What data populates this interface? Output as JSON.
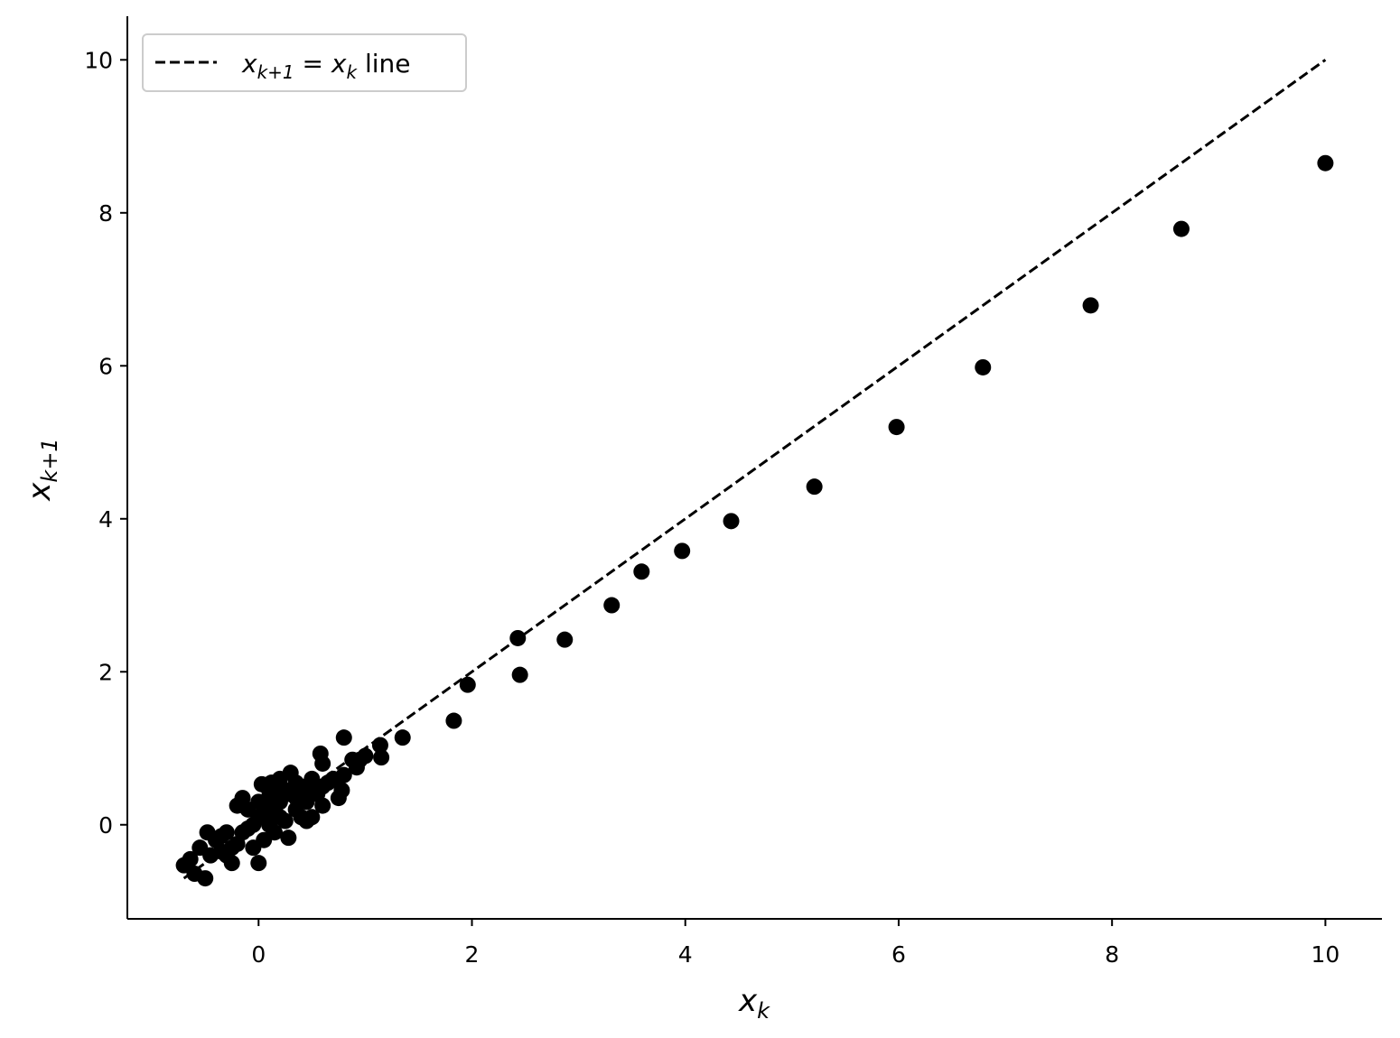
{
  "chart_data": {
    "type": "scatter",
    "title": "",
    "xlabel": {
      "base": "x",
      "sub": "k"
    },
    "ylabel": {
      "base": "x",
      "sub": "k+1"
    },
    "xlim": [
      -1.23,
      10.53
    ],
    "ylim": [
      -1.23,
      10.57
    ],
    "xticks": [
      0,
      2,
      4,
      6,
      8,
      10
    ],
    "yticks": [
      0,
      2,
      4,
      6,
      8,
      10
    ],
    "grid": false,
    "legend": {
      "placement": "top-left",
      "entries": [
        {
          "label_parts": [
            "x",
            "k+1",
            " = ",
            "x",
            "k",
            " line"
          ],
          "style": "dashed",
          "color": "#000000"
        }
      ]
    },
    "reference_line": {
      "name": "x_{k+1} = x_k line",
      "x": [
        -0.7,
        10
      ],
      "y": [
        -0.7,
        10
      ],
      "style": "dashed",
      "color": "#000000"
    },
    "marker_color": "#000000",
    "points": [
      [
        10,
        8.65
      ],
      [
        8.65,
        7.79
      ],
      [
        7.8,
        6.79
      ],
      [
        6.79,
        5.98
      ],
      [
        5.98,
        5.2
      ],
      [
        5.21,
        4.42
      ],
      [
        4.43,
        3.97
      ],
      [
        3.97,
        3.58
      ],
      [
        3.59,
        3.31
      ],
      [
        3.31,
        2.87
      ],
      [
        2.87,
        2.42
      ],
      [
        2.43,
        2.44
      ],
      [
        2.45,
        1.96
      ],
      [
        1.96,
        1.83
      ],
      [
        1.83,
        1.36
      ],
      [
        1.35,
        1.14
      ],
      [
        1.15,
        0.88
      ],
      [
        1.14,
        1.04
      ],
      [
        0.8,
        1.14
      ],
      [
        1.0,
        0.9
      ],
      [
        0.95,
        0.85
      ],
      [
        0.92,
        0.75
      ],
      [
        0.88,
        0.85
      ],
      [
        0.8,
        0.65
      ],
      [
        0.78,
        0.45
      ],
      [
        0.75,
        0.35
      ],
      [
        0.7,
        0.6
      ],
      [
        0.65,
        0.55
      ],
      [
        0.6,
        0.8
      ],
      [
        0.6,
        0.25
      ],
      [
        0.6,
        0.5
      ],
      [
        0.58,
        0.93
      ],
      [
        0.55,
        0.4
      ],
      [
        0.5,
        0.6
      ],
      [
        0.5,
        0.1
      ],
      [
        0.48,
        0.45
      ],
      [
        0.45,
        0.3
      ],
      [
        0.45,
        0.05
      ],
      [
        0.4,
        0.5
      ],
      [
        0.4,
        0.1
      ],
      [
        0.38,
        0.35
      ],
      [
        0.35,
        0.2
      ],
      [
        0.35,
        0.55
      ],
      [
        0.3,
        0.4
      ],
      [
        0.3,
        0.68
      ],
      [
        0.28,
        -0.17
      ],
      [
        0.25,
        0.05
      ],
      [
        0.25,
        0.45
      ],
      [
        0.2,
        0.6
      ],
      [
        0.2,
        0.3
      ],
      [
        0.2,
        0.1
      ],
      [
        0.18,
        0.38
      ],
      [
        0.15,
        0.2
      ],
      [
        0.15,
        -0.1
      ],
      [
        0.12,
        0.55
      ],
      [
        0.1,
        0.0
      ],
      [
        0.1,
        0.45
      ],
      [
        0.08,
        0.15
      ],
      [
        0.05,
        -0.2
      ],
      [
        0.05,
        0.3
      ],
      [
        0.03,
        0.53
      ],
      [
        0.0,
        0.1
      ],
      [
        0.0,
        0.3
      ],
      [
        0.0,
        -0.5
      ],
      [
        -0.05,
        -0.3
      ],
      [
        -0.05,
        0.0
      ],
      [
        -0.1,
        -0.05
      ],
      [
        -0.1,
        0.2
      ],
      [
        -0.15,
        0.35
      ],
      [
        -0.15,
        -0.1
      ],
      [
        -0.2,
        0.25
      ],
      [
        -0.2,
        -0.25
      ],
      [
        -0.25,
        -0.5
      ],
      [
        -0.25,
        -0.3
      ],
      [
        -0.3,
        -0.1
      ],
      [
        -0.3,
        -0.4
      ],
      [
        -0.35,
        -0.35
      ],
      [
        -0.35,
        -0.15
      ],
      [
        -0.4,
        -0.2
      ],
      [
        -0.45,
        -0.4
      ],
      [
        -0.48,
        -0.1
      ],
      [
        -0.5,
        -0.7
      ],
      [
        -0.55,
        -0.3
      ],
      [
        -0.6,
        -0.64
      ],
      [
        -0.64,
        -0.45
      ],
      [
        -0.7,
        -0.53
      ]
    ]
  }
}
